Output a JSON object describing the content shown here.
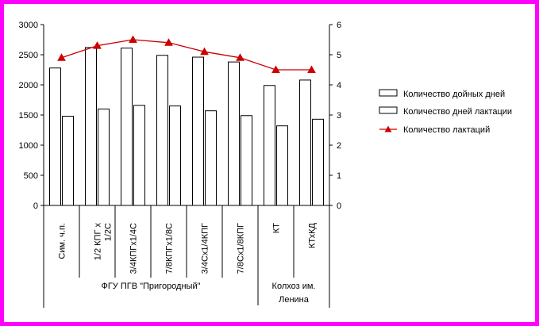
{
  "chart_data": {
    "type": "bar",
    "categories": [
      "Сим. ч.п.",
      "1/2 КПГ х 1/2С",
      "3/4КПГх1/4С",
      "7/8КПГх1/8С",
      "3/4Сх1/4КПГ",
      "7/8Сх1/8КПГ",
      "КТ",
      "КТхКД"
    ],
    "groups": [
      {
        "label": "ФГУ ПГВ \"Пригородный\"",
        "categories": 6
      },
      {
        "label": "Колхоз им. Ленина",
        "categories": 2
      }
    ],
    "series": [
      {
        "name": "Количество дойных дней",
        "axis": "left",
        "kind": "bar",
        "values": [
          2280,
          2620,
          2610,
          2490,
          2460,
          2380,
          1990,
          2080
        ]
      },
      {
        "name": "Количество дней лактации",
        "axis": "left",
        "kind": "bar",
        "values": [
          1480,
          1600,
          1660,
          1650,
          1570,
          1490,
          1320,
          1430
        ]
      },
      {
        "name": "Количество лактаций",
        "axis": "right",
        "kind": "line",
        "color": "#cc0000",
        "marker": "triangle",
        "values": [
          4.9,
          5.3,
          5.5,
          5.4,
          5.1,
          4.9,
          4.5,
          4.5
        ]
      }
    ],
    "ylim_left": [
      0,
      3000
    ],
    "yticks_left": [
      0,
      500,
      1000,
      1500,
      2000,
      2500,
      3000
    ],
    "ylim_right": [
      0,
      6
    ],
    "yticks_right": [
      0,
      1,
      2,
      3,
      4,
      5,
      6
    ],
    "grid": false,
    "legend_position": "right",
    "title": "",
    "xlabel": "",
    "ylabel": ""
  },
  "colors": {
    "frame": "#ff00ff",
    "line": "#cc0000",
    "bar_fill": "#ffffff",
    "bar_stroke": "#000000"
  }
}
